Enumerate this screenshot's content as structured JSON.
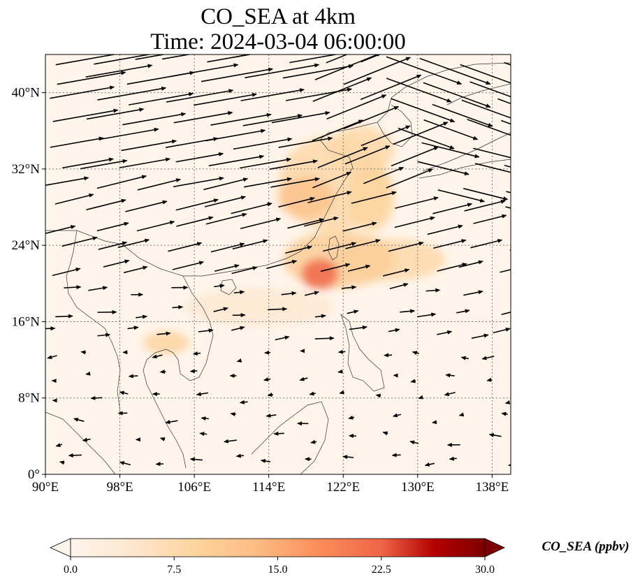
{
  "figure": {
    "title_line1": "CO_SEA at 4km",
    "title_line2": "Time: 2024-03-04 06:00:00"
  },
  "map": {
    "lon_range": [
      90,
      140
    ],
    "lat_range": [
      0,
      44
    ],
    "lon_ticks": [
      {
        "value": 90,
        "label": "90°E"
      },
      {
        "value": 98,
        "label": "98°E"
      },
      {
        "value": 106,
        "label": "106°E"
      },
      {
        "value": 114,
        "label": "114°E"
      },
      {
        "value": 122,
        "label": "122°E"
      },
      {
        "value": 130,
        "label": "130°E"
      },
      {
        "value": 138,
        "label": "138°E"
      }
    ],
    "lat_ticks": [
      {
        "value": 0,
        "label": "0°"
      },
      {
        "value": 8,
        "label": "8°N"
      },
      {
        "value": 16,
        "label": "16°N"
      },
      {
        "value": 24,
        "label": "24°N"
      },
      {
        "value": 32,
        "label": "32°N"
      },
      {
        "value": 40,
        "label": "40°N"
      }
    ],
    "gridlines": true,
    "background_color": "#fff5eb",
    "plumes": [
      {
        "lon": 119.5,
        "lat": 21.0,
        "rlon": 2.0,
        "rlat": 1.6,
        "level": 22
      },
      {
        "lon": 121.5,
        "lat": 22.5,
        "rlon": 6.0,
        "rlat": 3.0,
        "level": 10
      },
      {
        "lon": 127.0,
        "lat": 22.5,
        "rlon": 6.0,
        "rlat": 2.2,
        "level": 8
      },
      {
        "lon": 118.0,
        "lat": 29.0,
        "rlon": 3.0,
        "rlat": 2.2,
        "level": 12
      },
      {
        "lon": 121.0,
        "lat": 30.5,
        "rlon": 6.0,
        "rlat": 5.0,
        "level": 8
      },
      {
        "lon": 124.0,
        "lat": 34.0,
        "rlon": 3.5,
        "rlat": 2.5,
        "level": 8
      },
      {
        "lon": 125.0,
        "lat": 29.0,
        "rlon": 2.5,
        "rlat": 3.5,
        "level": 9
      },
      {
        "lon": 103.0,
        "lat": 13.8,
        "rlon": 2.5,
        "rlat": 1.2,
        "level": 9
      },
      {
        "lon": 113.0,
        "lat": 17.5,
        "rlon": 8.0,
        "rlat": 2.0,
        "level": 4
      }
    ],
    "wind_vectors_lon_step": 4,
    "wind_vectors_lat_step": 2.2
  },
  "colorbar": {
    "vmin": 0,
    "vmax": 30,
    "ticks": [
      {
        "value": 0,
        "label": "0.0"
      },
      {
        "value": 7.5,
        "label": "7.5"
      },
      {
        "value": 15,
        "label": "15.0"
      },
      {
        "value": 22.5,
        "label": "22.5"
      },
      {
        "value": 30,
        "label": "30.0"
      }
    ],
    "label": "CO_SEA (ppbv)",
    "colormap": "OrRd",
    "extend": "both"
  }
}
